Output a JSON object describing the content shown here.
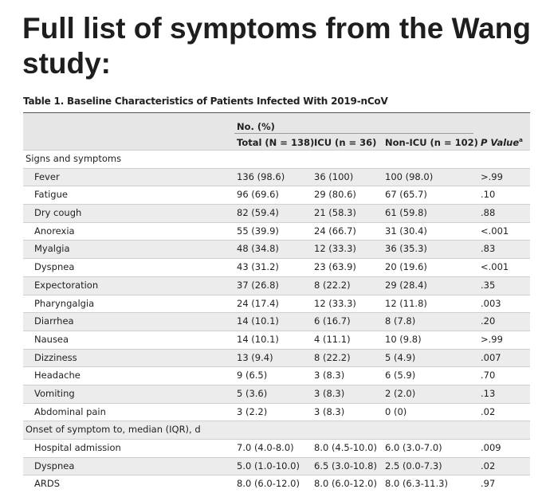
{
  "headline": "Full list of symptoms from the Wang study:",
  "table": {
    "caption": "Table 1. Baseline Characteristics of Patients Infected With 2019-nCoV",
    "group_header": "No. (%)",
    "columns": {
      "total": "Total (N = 138)",
      "icu": "ICU (n = 36)",
      "non_icu": "Non-ICU (n = 102)",
      "p_value": "P Value",
      "p_value_sup": "a"
    },
    "sections": [
      {
        "title": "Signs and symptoms",
        "rows": [
          {
            "label": "Fever",
            "total": "136 (98.6)",
            "icu": "36 (100)",
            "non_icu": "100 (98.0)",
            "p": ">.99"
          },
          {
            "label": "Fatigue",
            "total": "96 (69.6)",
            "icu": "29 (80.6)",
            "non_icu": "67 (65.7)",
            "p": ".10"
          },
          {
            "label": "Dry cough",
            "total": "82 (59.4)",
            "icu": "21 (58.3)",
            "non_icu": "61 (59.8)",
            "p": ".88"
          },
          {
            "label": "Anorexia",
            "total": "55 (39.9)",
            "icu": "24 (66.7)",
            "non_icu": "31 (30.4)",
            "p": "<.001"
          },
          {
            "label": "Myalgia",
            "total": "48 (34.8)",
            "icu": "12 (33.3)",
            "non_icu": "36 (35.3)",
            "p": ".83"
          },
          {
            "label": "Dyspnea",
            "total": "43 (31.2)",
            "icu": "23 (63.9)",
            "non_icu": "20 (19.6)",
            "p": "<.001"
          },
          {
            "label": "Expectoration",
            "total": "37 (26.8)",
            "icu": "8 (22.2)",
            "non_icu": "29 (28.4)",
            "p": ".35"
          },
          {
            "label": "Pharyngalgia",
            "total": "24 (17.4)",
            "icu": "12 (33.3)",
            "non_icu": "12 (11.8)",
            "p": ".003"
          },
          {
            "label": "Diarrhea",
            "total": "14 (10.1)",
            "icu": "6 (16.7)",
            "non_icu": "8 (7.8)",
            "p": ".20"
          },
          {
            "label": "Nausea",
            "total": "14 (10.1)",
            "icu": "4 (11.1)",
            "non_icu": "10 (9.8)",
            "p": ">.99"
          },
          {
            "label": "Dizziness",
            "total": "13 (9.4)",
            "icu": "8 (22.2)",
            "non_icu": "5 (4.9)",
            "p": ".007"
          },
          {
            "label": "Headache",
            "total": "9 (6.5)",
            "icu": "3 (8.3)",
            "non_icu": "6 (5.9)",
            "p": ".70"
          },
          {
            "label": "Vomiting",
            "total": "5 (3.6)",
            "icu": "3 (8.3)",
            "non_icu": "2 (2.0)",
            "p": ".13"
          },
          {
            "label": "Abdominal pain",
            "total": "3 (2.2)",
            "icu": "3 (8.3)",
            "non_icu": "0 (0)",
            "p": ".02"
          }
        ]
      },
      {
        "title": "Onset of symptom to, median (IQR), d",
        "rows": [
          {
            "label": "Hospital admission",
            "total": "7.0 (4.0-8.0)",
            "icu": "8.0 (4.5-10.0)",
            "non_icu": "6.0 (3.0-7.0)",
            "p": ".009"
          },
          {
            "label": "Dyspnea",
            "total": "5.0 (1.0-10.0)",
            "icu": "6.5 (3.0-10.8)",
            "non_icu": "2.5 (0.0-7.3)",
            "p": ".02"
          },
          {
            "label": "ARDS",
            "total": "8.0 (6.0-12.0)",
            "icu": "8.0 (6.0-12.0)",
            "non_icu": "8.0 (6.3-11.3)",
            "p": ".97"
          }
        ]
      }
    ]
  }
}
